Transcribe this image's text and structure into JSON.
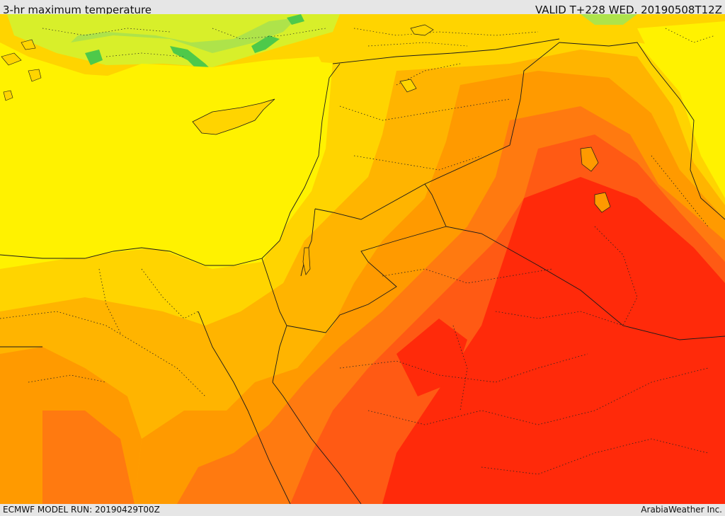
{
  "header": {
    "title": "3-hr maximum temperature",
    "valid": "VALID T+228 WED. 20190508T12Z"
  },
  "footer": {
    "model_run": "ECMWF MODEL RUN: 20190429T00Z",
    "brand": "ArabiaWeather Inc."
  },
  "map": {
    "colors": {
      "green": "#4ec94a",
      "light_green": "#aee34a",
      "yellow_green": "#d8ef2a",
      "yellow": "#fff200",
      "yellow_orange": "#ffd400",
      "amber": "#ffb400",
      "orange": "#ff9a00",
      "dark_orange": "#ff7a10",
      "red_orange": "#ff5a14",
      "red": "#ff2a0a",
      "border": "#1a1a1a"
    }
  }
}
